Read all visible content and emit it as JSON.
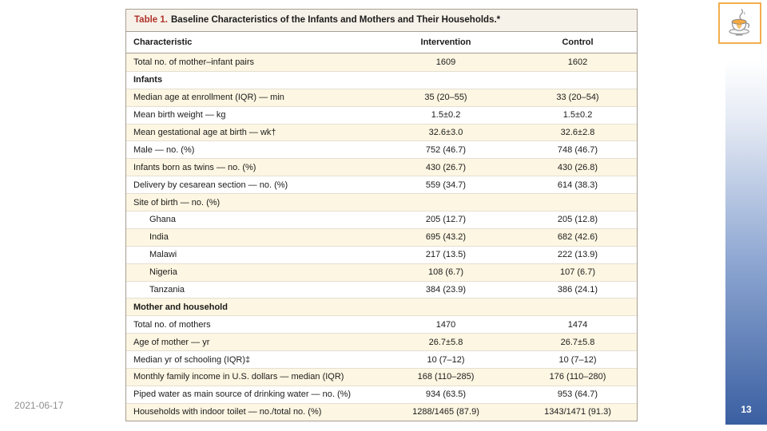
{
  "slide": {
    "date": "2021-06-17",
    "page_number": "13"
  },
  "icons": {
    "logo": "coffee-cup-heart-icon"
  },
  "colors": {
    "accent_sidebar_top": "#ffffff",
    "accent_sidebar_bottom": "#3a5fa1",
    "table_title_red": "#b0322c",
    "table_title_bg": "#f7f2e9",
    "table_border": "#a69e92",
    "row_stripe_beige": "#fdf6e2",
    "logo_border_orange": "#f2ae4e",
    "date_gray": "#8f8f8f"
  },
  "table": {
    "title_label": "Table 1.",
    "title_text": "Baseline Characteristics of the Infants and Mothers and Their Households.*",
    "columns": [
      "Characteristic",
      "Intervention",
      "Control"
    ],
    "rows": [
      {
        "label": "Total no. of mother–infant pairs",
        "intervention": "1609",
        "control": "1602"
      },
      {
        "label": "Infants",
        "intervention": "",
        "control": "",
        "section": true
      },
      {
        "label": "Median age at enrollment (IQR) — min",
        "intervention": "35 (20–55)",
        "control": "33 (20–54)"
      },
      {
        "label": "Mean birth weight — kg",
        "intervention": "1.5±0.2",
        "control": "1.5±0.2"
      },
      {
        "label": "Mean gestational age at birth — wk†",
        "intervention": "32.6±3.0",
        "control": "32.6±2.8"
      },
      {
        "label": "Male — no. (%)",
        "intervention": "752 (46.7)",
        "control": "748 (46.7)"
      },
      {
        "label": "Infants born as twins — no. (%)",
        "intervention": "430 (26.7)",
        "control": "430 (26.8)"
      },
      {
        "label": "Delivery by cesarean section — no. (%)",
        "intervention": "559 (34.7)",
        "control": "614 (38.3)"
      },
      {
        "label": "Site of birth — no. (%)",
        "intervention": "",
        "control": ""
      },
      {
        "label": "Ghana",
        "intervention": "205 (12.7)",
        "control": "205 (12.8)",
        "indent": true
      },
      {
        "label": "India",
        "intervention": "695 (43.2)",
        "control": "682 (42.6)",
        "indent": true
      },
      {
        "label": "Malawi",
        "intervention": "217 (13.5)",
        "control": "222 (13.9)",
        "indent": true
      },
      {
        "label": "Nigeria",
        "intervention": "108 (6.7)",
        "control": "107 (6.7)",
        "indent": true
      },
      {
        "label": "Tanzania",
        "intervention": "384 (23.9)",
        "control": "386 (24.1)",
        "indent": true
      },
      {
        "label": "Mother and household",
        "intervention": "",
        "control": "",
        "section": true
      },
      {
        "label": "Total no. of mothers",
        "intervention": "1470",
        "control": "1474"
      },
      {
        "label": "Age of mother — yr",
        "intervention": "26.7±5.8",
        "control": "26.7±5.8"
      },
      {
        "label": "Median yr of schooling (IQR)‡",
        "intervention": "10 (7–12)",
        "control": "10 (7–12)"
      },
      {
        "label": "Monthly family income in U.S. dollars — median (IQR)",
        "intervention": "168 (110–285)",
        "control": "176 (110–280)"
      },
      {
        "label": "Piped water as main source of drinking water — no. (%)",
        "intervention": "934 (63.5)",
        "control": "953 (64.7)"
      },
      {
        "label": "Households with indoor toilet — no./total no. (%)",
        "intervention": "1288/1465 (87.9)",
        "control": "1343/1471 (91.3)"
      }
    ]
  }
}
